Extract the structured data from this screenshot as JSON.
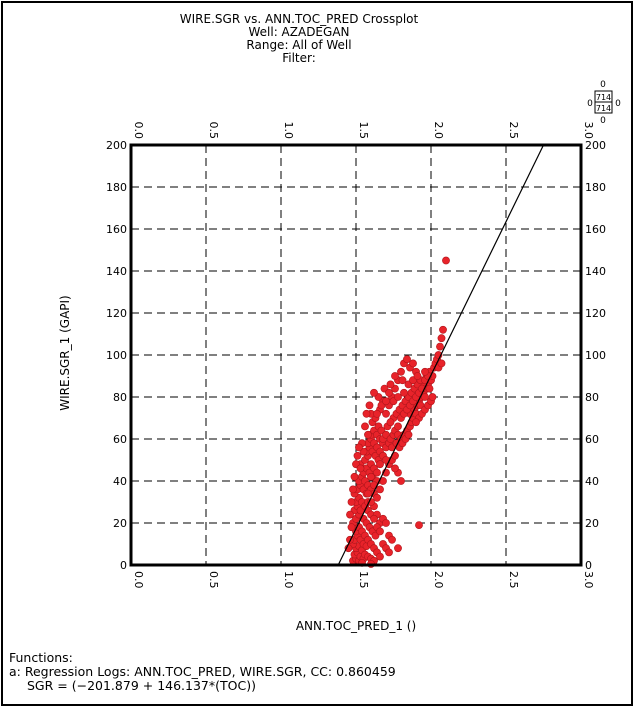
{
  "header": {
    "title": "WIRE.SGR vs. ANN.TOC_PRED Crossplot",
    "well": "Well: AZADEGAN",
    "range": "Range: All of Well",
    "filter": "Filter:"
  },
  "counter": {
    "top": "714",
    "bottom": "714",
    "left_mark": "0",
    "right_mark": "0",
    "up_mark": "0",
    "down_mark": "0"
  },
  "functions": {
    "heading": "Functions:",
    "line1": "a: Regression Logs: ANN.TOC_PRED, WIRE.SGR, CC: 0.860459",
    "line2": "SGR = (−201.879 + 146.137*(TOC))"
  },
  "colors": {
    "points": "#e8232a",
    "point_edge": "#b0161c",
    "grid": "#000000"
  },
  "chart_data": {
    "type": "scatter",
    "xlabel": "ANN.TOC_PRED_1 ()",
    "ylabel": "WIRE.SGR_1 (GAPI)",
    "xlim": [
      0.0,
      3.0
    ],
    "ylim": [
      0,
      200
    ],
    "xticks": [
      "0.0",
      "0.5",
      "1.0",
      "1.5",
      "2.0",
      "2.5",
      "3.0"
    ],
    "yticks": [
      "0",
      "20",
      "40",
      "60",
      "80",
      "100",
      "120",
      "140",
      "160",
      "180",
      "200"
    ],
    "grid": true,
    "regression": {
      "intercept": -201.879,
      "slope": 146.137
    },
    "points": [
      [
        1.48,
        2
      ],
      [
        1.5,
        3
      ],
      [
        1.52,
        2
      ],
      [
        1.49,
        5
      ],
      [
        1.51,
        6
      ],
      [
        1.53,
        4
      ],
      [
        1.55,
        3
      ],
      [
        1.5,
        8
      ],
      [
        1.52,
        9
      ],
      [
        1.48,
        10
      ],
      [
        1.54,
        7
      ],
      [
        1.56,
        5
      ],
      [
        1.58,
        4
      ],
      [
        1.6,
        3
      ],
      [
        1.62,
        2
      ],
      [
        1.49,
        12
      ],
      [
        1.51,
        14
      ],
      [
        1.53,
        12
      ],
      [
        1.55,
        10
      ],
      [
        1.57,
        9
      ],
      [
        1.5,
        16
      ],
      [
        1.52,
        18
      ],
      [
        1.48,
        20
      ],
      [
        1.54,
        16
      ],
      [
        1.56,
        14
      ],
      [
        1.58,
        12
      ],
      [
        1.6,
        10
      ],
      [
        1.62,
        8
      ],
      [
        1.64,
        6
      ],
      [
        1.66,
        4
      ],
      [
        1.5,
        22
      ],
      [
        1.52,
        24
      ],
      [
        1.49,
        26
      ],
      [
        1.51,
        28
      ],
      [
        1.53,
        26
      ],
      [
        1.55,
        22
      ],
      [
        1.57,
        20
      ],
      [
        1.59,
        18
      ],
      [
        1.61,
        16
      ],
      [
        1.63,
        14
      ],
      [
        1.5,
        30
      ],
      [
        1.52,
        32
      ],
      [
        1.54,
        30
      ],
      [
        1.49,
        34
      ],
      [
        1.56,
        28
      ],
      [
        1.58,
        26
      ],
      [
        1.6,
        24
      ],
      [
        1.68,
        10
      ],
      [
        1.7,
        8
      ],
      [
        1.72,
        6
      ],
      [
        1.51,
        36
      ],
      [
        1.53,
        38
      ],
      [
        1.55,
        36
      ],
      [
        1.57,
        34
      ],
      [
        1.52,
        40
      ],
      [
        1.54,
        42
      ],
      [
        1.56,
        40
      ],
      [
        1.58,
        38
      ],
      [
        1.6,
        36
      ],
      [
        1.62,
        34
      ],
      [
        1.55,
        44
      ],
      [
        1.57,
        46
      ],
      [
        1.59,
        44
      ],
      [
        1.61,
        42
      ],
      [
        1.53,
        48
      ],
      [
        1.56,
        50
      ],
      [
        1.58,
        52
      ],
      [
        1.6,
        48
      ],
      [
        1.62,
        46
      ],
      [
        1.64,
        44
      ],
      [
        1.57,
        54
      ],
      [
        1.59,
        56
      ],
      [
        1.61,
        54
      ],
      [
        1.63,
        52
      ],
      [
        1.65,
        50
      ],
      [
        1.58,
        58
      ],
      [
        1.6,
        60
      ],
      [
        1.62,
        58
      ],
      [
        1.64,
        56
      ],
      [
        1.66,
        54
      ],
      [
        1.6,
        62
      ],
      [
        1.62,
        64
      ],
      [
        1.64,
        62
      ],
      [
        1.66,
        60
      ],
      [
        1.68,
        58
      ],
      [
        1.7,
        56
      ],
      [
        1.56,
        66
      ],
      [
        1.61,
        68
      ],
      [
        1.65,
        66
      ],
      [
        1.67,
        64
      ],
      [
        1.68,
        60
      ],
      [
        1.7,
        62
      ],
      [
        1.72,
        58
      ],
      [
        1.74,
        56
      ],
      [
        1.73,
        60
      ],
      [
        1.75,
        62
      ],
      [
        1.76,
        64
      ],
      [
        1.78,
        62
      ],
      [
        1.8,
        60
      ],
      [
        1.82,
        62
      ],
      [
        1.77,
        58
      ],
      [
        1.79,
        56
      ],
      [
        1.81,
        58
      ],
      [
        1.83,
        60
      ],
      [
        1.84,
        64
      ],
      [
        1.86,
        66
      ],
      [
        1.85,
        62
      ],
      [
        1.87,
        68
      ],
      [
        1.88,
        70
      ],
      [
        1.86,
        72
      ],
      [
        1.89,
        74
      ],
      [
        1.9,
        72
      ],
      [
        1.91,
        76
      ],
      [
        1.92,
        78
      ],
      [
        1.93,
        76
      ],
      [
        1.94,
        80
      ],
      [
        1.95,
        82
      ],
      [
        1.96,
        80
      ],
      [
        1.97,
        84
      ],
      [
        1.98,
        86
      ],
      [
        1.99,
        84
      ],
      [
        2.0,
        88
      ],
      [
        1.95,
        86
      ],
      [
        1.97,
        90
      ],
      [
        1.99,
        92
      ],
      [
        2.01,
        90
      ],
      [
        2.02,
        94
      ],
      [
        2.03,
        96
      ],
      [
        2.04,
        98
      ],
      [
        2.05,
        100
      ],
      [
        2.06,
        104
      ],
      [
        2.07,
        108
      ],
      [
        2.08,
        112
      ],
      [
        1.92,
        70
      ],
      [
        1.94,
        72
      ],
      [
        1.96,
        74
      ],
      [
        1.98,
        76
      ],
      [
        2.0,
        78
      ],
      [
        2.01,
        80
      ],
      [
        1.9,
        68
      ],
      [
        1.75,
        70
      ],
      [
        1.77,
        72
      ],
      [
        1.79,
        74
      ],
      [
        1.81,
        76
      ],
      [
        1.83,
        78
      ],
      [
        1.85,
        80
      ],
      [
        1.87,
        82
      ],
      [
        1.89,
        84
      ],
      [
        1.91,
        86
      ],
      [
        1.93,
        88
      ],
      [
        1.7,
        72
      ],
      [
        1.72,
        76
      ],
      [
        1.74,
        80
      ],
      [
        1.76,
        84
      ],
      [
        1.78,
        88
      ],
      [
        1.8,
        92
      ],
      [
        1.82,
        96
      ],
      [
        1.84,
        98
      ],
      [
        1.86,
        94
      ],
      [
        1.88,
        96
      ],
      [
        1.66,
        74
      ],
      [
        1.68,
        78
      ],
      [
        1.63,
        70
      ],
      [
        1.6,
        72
      ],
      [
        1.65,
        80
      ],
      [
        1.69,
        84
      ],
      [
        1.73,
        86
      ],
      [
        1.76,
        90
      ],
      [
        1.81,
        88
      ],
      [
        1.9,
        92
      ],
      [
        1.55,
        54
      ],
      [
        1.58,
        62
      ],
      [
        1.54,
        58
      ],
      [
        1.52,
        56
      ],
      [
        1.57,
        72
      ],
      [
        1.59,
        76
      ],
      [
        1.62,
        82
      ],
      [
        1.71,
        66
      ],
      [
        1.73,
        68
      ],
      [
        1.78,
        66
      ],
      [
        1.8,
        70
      ],
      [
        1.82,
        72
      ],
      [
        1.84,
        74
      ],
      [
        1.86,
        76
      ],
      [
        1.88,
        78
      ],
      [
        1.9,
        80
      ],
      [
        1.92,
        82
      ],
      [
        1.94,
        84
      ],
      [
        1.96,
        88
      ],
      [
        1.98,
        90
      ],
      [
        1.45,
        8
      ],
      [
        1.46,
        12
      ],
      [
        1.47,
        18
      ],
      [
        1.46,
        24
      ],
      [
        1.47,
        30
      ],
      [
        1.48,
        36
      ],
      [
        1.49,
        42
      ],
      [
        1.5,
        48
      ],
      [
        1.51,
        52
      ],
      [
        1.53,
        46
      ],
      [
        1.64,
        72
      ],
      [
        1.67,
        76
      ],
      [
        1.7,
        78
      ],
      [
        1.72,
        82
      ],
      [
        1.75,
        78
      ],
      [
        1.78,
        80
      ],
      [
        1.82,
        82
      ],
      [
        1.85,
        86
      ],
      [
        1.88,
        88
      ],
      [
        1.91,
        90
      ],
      [
        1.58,
        30
      ],
      [
        1.62,
        28
      ],
      [
        1.64,
        32
      ],
      [
        1.66,
        36
      ],
      [
        1.68,
        40
      ],
      [
        1.7,
        44
      ],
      [
        1.72,
        48
      ],
      [
        1.74,
        50
      ],
      [
        1.76,
        52
      ],
      [
        1.66,
        48
      ],
      [
        1.68,
        52
      ],
      [
        1.7,
        50
      ],
      [
        1.64,
        40
      ],
      [
        1.62,
        38
      ],
      [
        1.6,
        42
      ],
      [
        1.8,
        40
      ],
      [
        1.78,
        44
      ],
      [
        1.76,
        46
      ],
      [
        1.6,
        30
      ],
      [
        1.58,
        34
      ],
      [
        1.66,
        20
      ],
      [
        1.68,
        22
      ],
      [
        1.7,
        20
      ],
      [
        1.64,
        24
      ],
      [
        1.62,
        22
      ],
      [
        1.72,
        14
      ],
      [
        1.74,
        12
      ],
      [
        1.78,
        8
      ],
      [
        1.64,
        18
      ],
      [
        1.66,
        16
      ],
      [
        2.1,
        145
      ],
      [
        1.92,
        19
      ],
      [
        1.6,
        0.5
      ],
      [
        1.54,
        1
      ],
      [
        2.05,
        94
      ],
      [
        2.07,
        96
      ],
      [
        1.96,
        92
      ]
    ]
  }
}
